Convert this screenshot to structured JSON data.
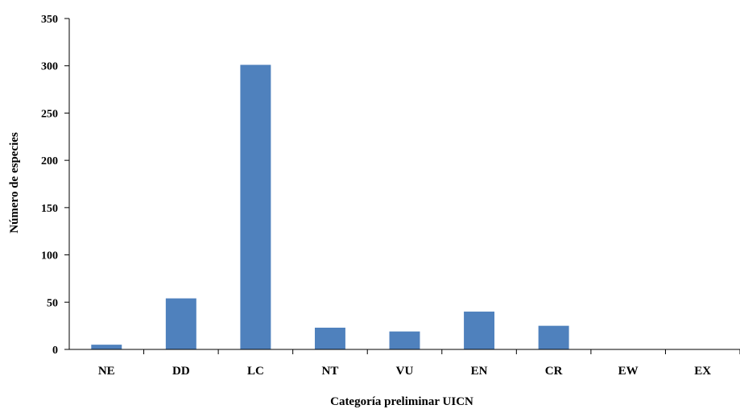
{
  "chart_data": {
    "type": "bar",
    "categories": [
      "NE",
      "DD",
      "LC",
      "NT",
      "VU",
      "EN",
      "CR",
      "EW",
      "EX"
    ],
    "values": [
      5,
      54,
      301,
      23,
      19,
      40,
      25,
      0,
      0
    ],
    "xlabel": "Categoría preliminar UICN",
    "ylabel": "Número de especies",
    "ylim": [
      0,
      350
    ],
    "yticks": [
      0,
      50,
      100,
      150,
      200,
      250,
      300,
      350
    ],
    "grid": false,
    "legend": "none",
    "bar_color": "#4F81BD"
  }
}
